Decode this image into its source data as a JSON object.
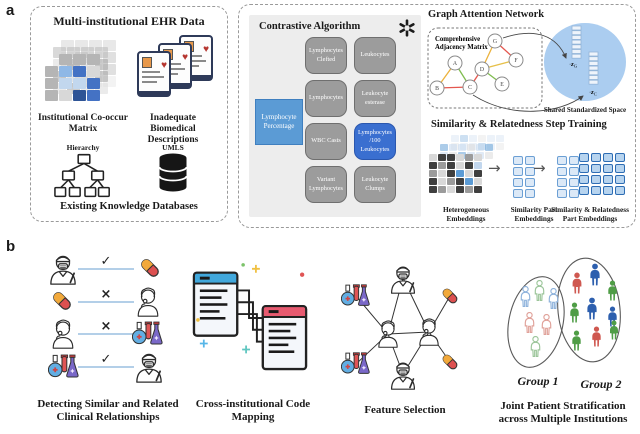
{
  "panel_a_label": "a",
  "panel_b_label": "b",
  "colors": {
    "accent_blue": "#5b9bd5",
    "highlight_blue": "#3a6fd0",
    "term_gray": "#9c9c9c",
    "ellipse_blue": "#abcdf0",
    "edge_orange": "#ecb23c",
    "edge_red": "#e4574f",
    "edge_green": "#7fbc4f",
    "connector_blue": "#b3cfe8"
  },
  "icons": {
    "heart": "♥",
    "check": "✓",
    "cross": "×",
    "arrow": "→"
  },
  "ehr": {
    "title": "Multi-institutional EHR Data",
    "matrix_caption": "Institutional Co-occur Matrix",
    "tablets_caption": "Inadequate Biomedical Descriptions",
    "hierarchy_label": "Hierarchy",
    "umls_label": "UMLS",
    "bottom_caption": "Existing Knowledge Databases"
  },
  "contrastive": {
    "title": "Contrastive Algorithm",
    "anchor": "Lymphocyte Percentage",
    "terms": [
      "Lymphocytes Clefted",
      "Leukocytes",
      "Lymphocytes",
      "Leukocyte esterase",
      "WBC Casts",
      "Lymphocytes /100 Leukocytes",
      "Variant Lymphocytes",
      "Leukocyte Clumps"
    ]
  },
  "gat": {
    "title": "Graph Attention Network",
    "adjacency_lines": [
      "Comprehensive",
      "Adjacency Matrix"
    ],
    "nodes": [
      "A",
      "B",
      "C",
      "D",
      "E",
      "F",
      "G"
    ],
    "edges": [
      [
        "A",
        "B",
        "orange"
      ],
      [
        "A",
        "C",
        "green"
      ],
      [
        "B",
        "C",
        "red"
      ],
      [
        "C",
        "D",
        "red"
      ],
      [
        "D",
        "E",
        "green"
      ],
      [
        "D",
        "F",
        "yellow"
      ],
      [
        "D",
        "G",
        "orange"
      ],
      [
        "F",
        "G",
        "red"
      ]
    ],
    "z1": {
      "dot": "·",
      "base": "z",
      "sub": "G"
    },
    "z2": {
      "dot": "·",
      "base": "z",
      "sub": "C"
    },
    "space_caption": "Shared  Standardized Space"
  },
  "similarity": {
    "title": "Similarity & Relatedness Step Training",
    "captions": [
      "Heterogeneous Embeddings",
      "Similarity Part Embeddings",
      "Similarity & Relatedness Part Embeddings"
    ]
  },
  "grids": {
    "matrix": [
      "xhhh",
      "haml",
      "hppm",
      "hlkm"
    ],
    "matrix_back": [
      "hhhh",
      "lglg",
      "gllg",
      "lgll"
    ],
    "het_fade2": [
      "pbplpp",
      "lppbpl"
    ],
    "het_fade1": [
      "bpplpb",
      "plbppl"
    ],
    "het_main": [
      "lddlgl",
      "dgdldp",
      "gldbld",
      "dlgdbl",
      "dgldgd"
    ],
    "sim_part": [
      "ss",
      "ss",
      "ss",
      "ss"
    ],
    "simrel_left": [
      "ss",
      "ss",
      "ss",
      "ss"
    ],
    "simrel_right": [
      "SSSS",
      "SSSS",
      "SSSS",
      "SSSS"
    ]
  },
  "detecting": {
    "caption": "Detecting Similar and Related Clinical Relationships",
    "rows": [
      {
        "left": "doctor",
        "mark": "✓",
        "right": "capsule"
      },
      {
        "left": "capsule",
        "mark": "×",
        "right": "patient"
      },
      {
        "left": "patient",
        "mark": "×",
        "right": "flasks"
      },
      {
        "left": "flasks",
        "mark": "✓",
        "right": "doctor"
      }
    ]
  },
  "mapping": {
    "caption": "Cross-institutional Code Mapping"
  },
  "feature": {
    "caption": "Feature Selection"
  },
  "strat": {
    "caption": "Joint Patient Stratification across Multiple Institutions",
    "group1": "Group 1",
    "group2": "Group 2"
  }
}
